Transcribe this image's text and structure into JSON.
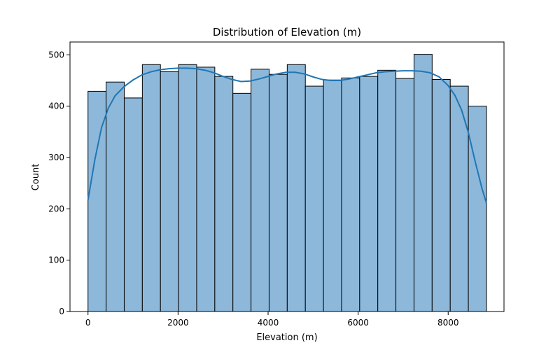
{
  "chart_data": {
    "type": "bar",
    "title": "Distribution of Elevation (m)",
    "xlabel": "Elevation (m)",
    "ylabel": "Count",
    "xlim": [
      -400,
      9240
    ],
    "ylim": [
      0,
      525
    ],
    "xticks": [
      0,
      2000,
      4000,
      6000,
      8000
    ],
    "yticks": [
      0,
      100,
      200,
      300,
      400,
      500
    ],
    "bin_start": 0,
    "bin_width": 402.3,
    "bin_counts": [
      429,
      447,
      416,
      481,
      467,
      481,
      476,
      458,
      425,
      472,
      462,
      481,
      439,
      451,
      455,
      458,
      470,
      454,
      501,
      452,
      439,
      400
    ],
    "kde": {
      "x": [
        0,
        150,
        300,
        450,
        600,
        800,
        1000,
        1200,
        1400,
        1600,
        1800,
        2000,
        2200,
        2400,
        2600,
        2800,
        3000,
        3200,
        3400,
        3600,
        3800,
        4000,
        4200,
        4400,
        4600,
        4800,
        5000,
        5200,
        5400,
        5600,
        5800,
        6000,
        6200,
        6400,
        6600,
        6800,
        7000,
        7200,
        7400,
        7600,
        7800,
        8000,
        8150,
        8300,
        8450,
        8600,
        8750,
        8850
      ],
      "y": [
        217,
        295,
        358,
        396,
        420,
        438,
        451,
        461,
        467,
        471,
        473,
        474,
        474,
        473,
        470,
        465,
        458,
        452,
        448,
        449,
        453,
        458,
        463,
        466,
        466,
        463,
        457,
        452,
        450,
        450,
        453,
        457,
        461,
        465,
        467,
        468,
        469,
        469,
        468,
        465,
        457,
        440,
        421,
        392,
        348,
        292,
        240,
        211
      ]
    },
    "colors": {
      "bar_fill": "#8db8da",
      "bar_edge": "#000000",
      "kde_line": "#1f77b4"
    },
    "grid": false,
    "legend": "none"
  }
}
